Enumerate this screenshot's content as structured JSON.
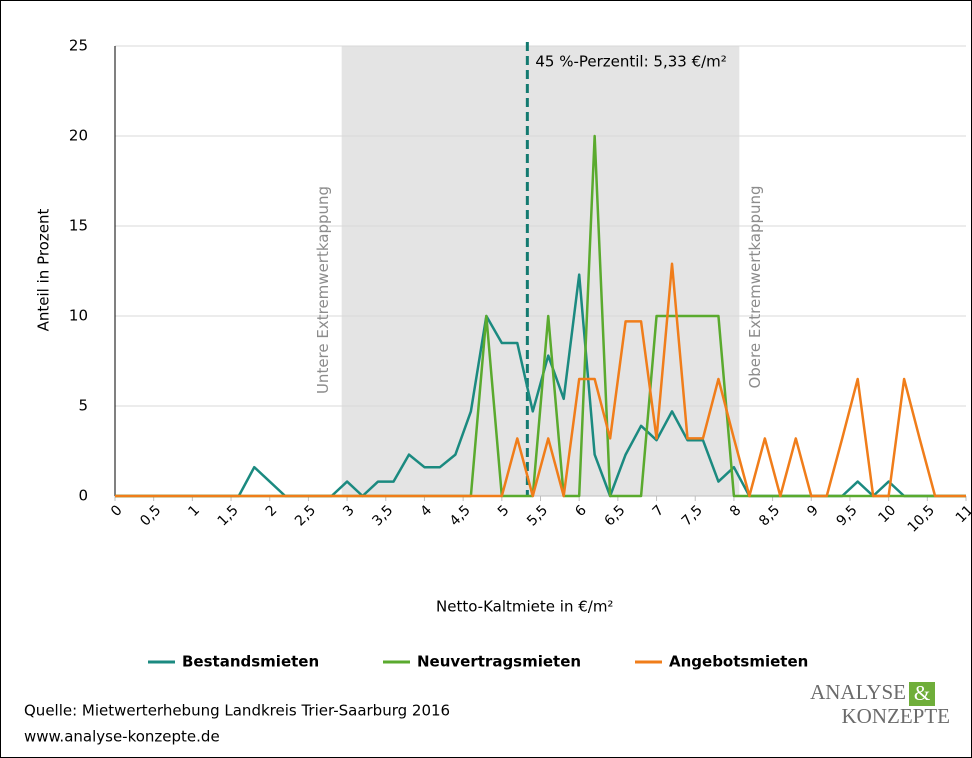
{
  "chart_data": {
    "type": "line",
    "xlabel": "Netto-Kaltmiete in €/m²",
    "ylabel": "Anteil in Prozent",
    "x": [
      0,
      0.2,
      0.4,
      0.6,
      0.8,
      1.0,
      1.2,
      1.4,
      1.6,
      1.8,
      2.0,
      2.2,
      2.4,
      2.6,
      2.8,
      3.0,
      3.2,
      3.4,
      3.6,
      3.8,
      4.0,
      4.2,
      4.4,
      4.6,
      4.8,
      5.0,
      5.2,
      5.4,
      5.6,
      5.8,
      6.0,
      6.2,
      6.4,
      6.6,
      6.8,
      7.0,
      7.2,
      7.4,
      7.6,
      7.8,
      8.0,
      8.2,
      8.4,
      8.6,
      8.8,
      9.0,
      9.2,
      9.4,
      9.6,
      9.8,
      10.0,
      10.2,
      10.4,
      10.6,
      10.8,
      11.0
    ],
    "series": [
      {
        "name": "Bestandsmieten",
        "color": "#1b8a80",
        "values": [
          0,
          0,
          0,
          0,
          0,
          0,
          0,
          0,
          0,
          1.6,
          0.8,
          0,
          0,
          0,
          0,
          0.8,
          0,
          0.8,
          0.8,
          2.3,
          1.6,
          1.6,
          2.3,
          4.7,
          10,
          8.5,
          8.5,
          4.7,
          7.8,
          5.4,
          12.3,
          2.3,
          0,
          2.3,
          3.9,
          3.1,
          4.7,
          3.1,
          3.1,
          0.8,
          1.6,
          0,
          0,
          0,
          0,
          0,
          0,
          0,
          0.8,
          0,
          0.8,
          0,
          0,
          0,
          0,
          0
        ]
      },
      {
        "name": "Neuvertragsmieten",
        "color": "#5aaa2e",
        "values": [
          0,
          0,
          0,
          0,
          0,
          0,
          0,
          0,
          0,
          0,
          0,
          0,
          0,
          0,
          0,
          0,
          0,
          0,
          0,
          0,
          0,
          0,
          0,
          0,
          10,
          0,
          0,
          0,
          10,
          0,
          0,
          20,
          0,
          0,
          0,
          10,
          10,
          10,
          10,
          10,
          0,
          0,
          0,
          0,
          0,
          0,
          0,
          0,
          0,
          0,
          0,
          0,
          0,
          0,
          0,
          0
        ]
      },
      {
        "name": "Angebotsmieten",
        "color": "#f07d1a",
        "values": [
          0,
          0,
          0,
          0,
          0,
          0,
          0,
          0,
          0,
          0,
          0,
          0,
          0,
          0,
          0,
          0,
          0,
          0,
          0,
          0,
          0,
          0,
          0,
          0,
          0,
          0,
          3.2,
          0,
          3.2,
          0,
          6.5,
          6.5,
          3.2,
          9.7,
          9.7,
          3.2,
          12.9,
          3.2,
          3.2,
          6.5,
          3.2,
          0,
          3.2,
          0,
          3.2,
          0,
          0,
          3.2,
          6.5,
          0,
          0,
          6.5,
          3.2,
          0,
          0,
          0
        ]
      }
    ],
    "xlim": [
      0,
      11
    ],
    "xticks": [
      0,
      {
        "value": 0.5,
        "label": "0,5"
      },
      1,
      {
        "value": 1.5,
        "label": "1,5"
      },
      2,
      {
        "value": 2.5,
        "label": "2,5"
      },
      3,
      {
        "value": 3.5,
        "label": "3,5"
      },
      4,
      {
        "value": 4.5,
        "label": "4,5"
      },
      5,
      {
        "value": 5.5,
        "label": "5,5"
      },
      6,
      {
        "value": 6.5,
        "label": "6,5"
      },
      7,
      {
        "value": 7.5,
        "label": "7,5"
      },
      8,
      {
        "value": 8.5,
        "label": "8,5"
      },
      9,
      {
        "value": 9.5,
        "label": "9,5"
      },
      10,
      {
        "value": 10.5,
        "label": "10,5"
      },
      11
    ],
    "ylim": [
      0,
      25
    ],
    "yticks": [
      0,
      5,
      10,
      15,
      20,
      25
    ],
    "grid": true,
    "legend": "bottom",
    "shaded_range": [
      2.93,
      8.07
    ],
    "reference_line": 5.33,
    "annotations": [
      "45 %-Perzentil: 5,33 €/m²",
      "Untere Extremwertkappung",
      "Obere Extremwertkappung"
    ],
    "source": [
      "Quelle: Mietwerterhebung Landkreis Trier-Saarburg 2016",
      "www.analyse-konzepte.de"
    ],
    "logo": [
      "ANALYSE",
      "&",
      "KONZEPTE"
    ]
  }
}
